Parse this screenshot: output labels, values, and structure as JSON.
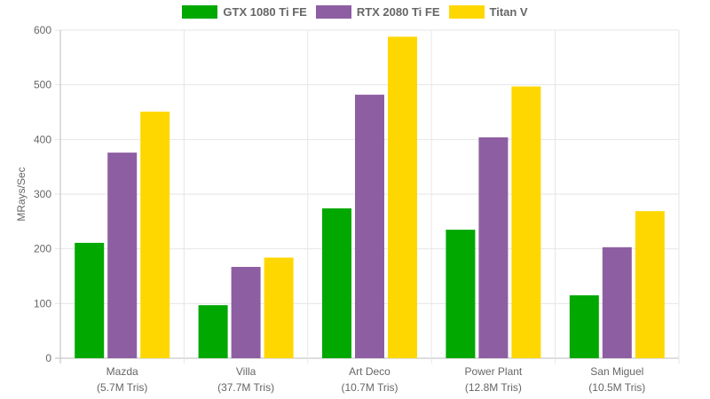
{
  "chart_data": {
    "type": "bar",
    "title": "",
    "xlabel": "",
    "ylabel": "MRays/Sec",
    "ylim": [
      0,
      600
    ],
    "yticks": [
      0,
      100,
      200,
      300,
      400,
      500,
      600
    ],
    "grid": true,
    "legend_position": "top-center",
    "categories": [
      {
        "name": "Mazda",
        "sub": "(5.7M Tris)"
      },
      {
        "name": "Villa",
        "sub": "(37.7M Tris)"
      },
      {
        "name": "Art Deco",
        "sub": "(10.7M Tris)"
      },
      {
        "name": "Power Plant",
        "sub": "(12.8M Tris)"
      },
      {
        "name": "San Miguel",
        "sub": "(10.5M Tris)"
      }
    ],
    "series": [
      {
        "name": "GTX 1080 Ti FE",
        "color": "#00a800",
        "values": [
          211,
          97,
          274,
          235,
          115
        ]
      },
      {
        "name": "RTX 2080 Ti FE",
        "color": "#8e5ea2",
        "values": [
          376,
          167,
          482,
          404,
          203
        ]
      },
      {
        "name": "Titan V",
        "color": "#ffd700",
        "values": [
          451,
          184,
          588,
          497,
          269
        ]
      }
    ]
  }
}
